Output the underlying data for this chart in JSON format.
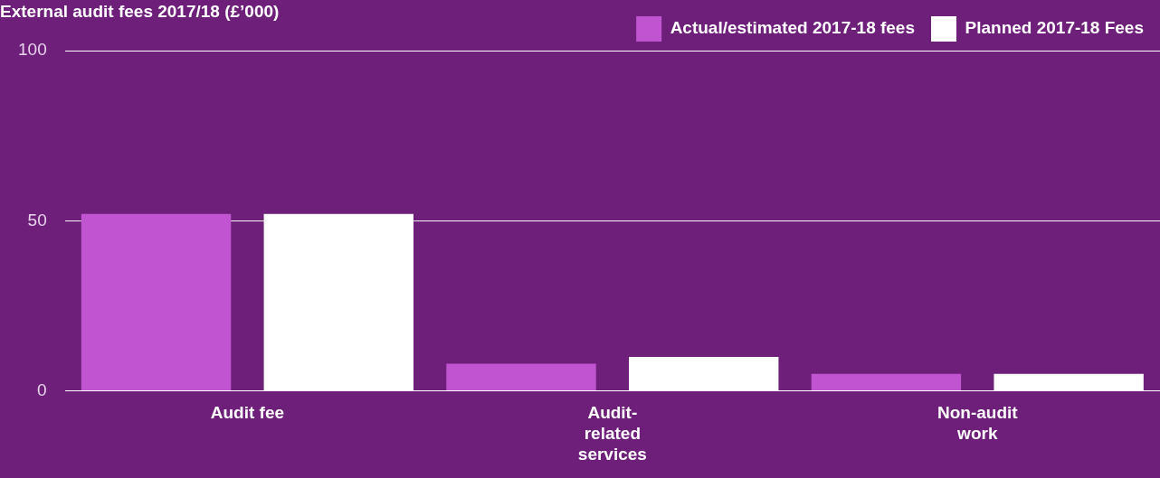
{
  "chart_data": {
    "type": "bar",
    "title": "External audit fees 2017/18 (£’000)",
    "categories": [
      "Audit fee",
      "Audit-related services",
      "Non-audit work"
    ],
    "series": [
      {
        "name": "Actual/estimated 2017-18 fees",
        "color": "#c155d1",
        "values": [
          52,
          8,
          5
        ]
      },
      {
        "name": "Planned 2017-18 Fees",
        "color": "#ffffff",
        "values": [
          52,
          10,
          5
        ]
      }
    ],
    "ylim": [
      0,
      100
    ],
    "yticks": [
      0,
      50,
      100
    ],
    "grid": "y",
    "legend": "top right"
  }
}
